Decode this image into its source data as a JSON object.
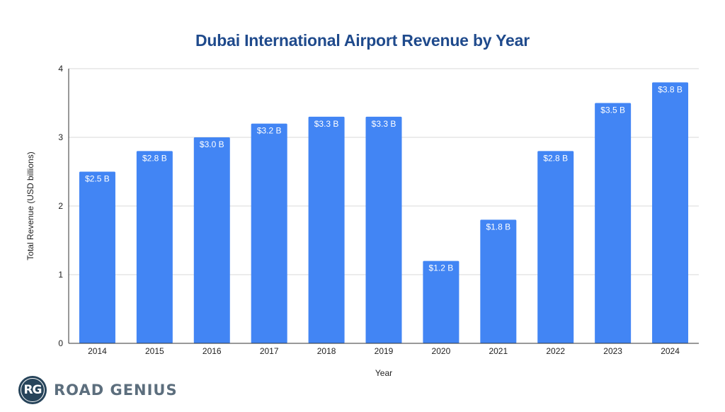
{
  "chart_data": {
    "type": "bar",
    "title": "Dubai International Airport Revenue by Year",
    "xlabel": "Year",
    "ylabel": "Total Revenue (USD billions)",
    "categories": [
      "2014",
      "2015",
      "2016",
      "2017",
      "2018",
      "2019",
      "2020",
      "2021",
      "2022",
      "2023",
      "2024"
    ],
    "values": [
      2.5,
      2.8,
      3.0,
      3.2,
      3.3,
      3.3,
      1.2,
      1.8,
      2.8,
      3.5,
      3.8
    ],
    "data_labels": [
      "$2.5 B",
      "$2.8 B",
      "$3.0 B",
      "$3.2 B",
      "$3.3 B",
      "$3.3 B",
      "$1.2 B",
      "$1.8 B",
      "$2.8 B",
      "$3.5 B",
      "$3.8 B"
    ],
    "ylim": [
      0,
      4
    ],
    "yticks": [
      "0",
      "1",
      "2",
      "3",
      "4"
    ],
    "grid": true,
    "legend": "none",
    "bar_color": "#4285f4"
  },
  "branding": {
    "logo_initials": "RG",
    "logo_text": "ROAD GENIUS"
  }
}
